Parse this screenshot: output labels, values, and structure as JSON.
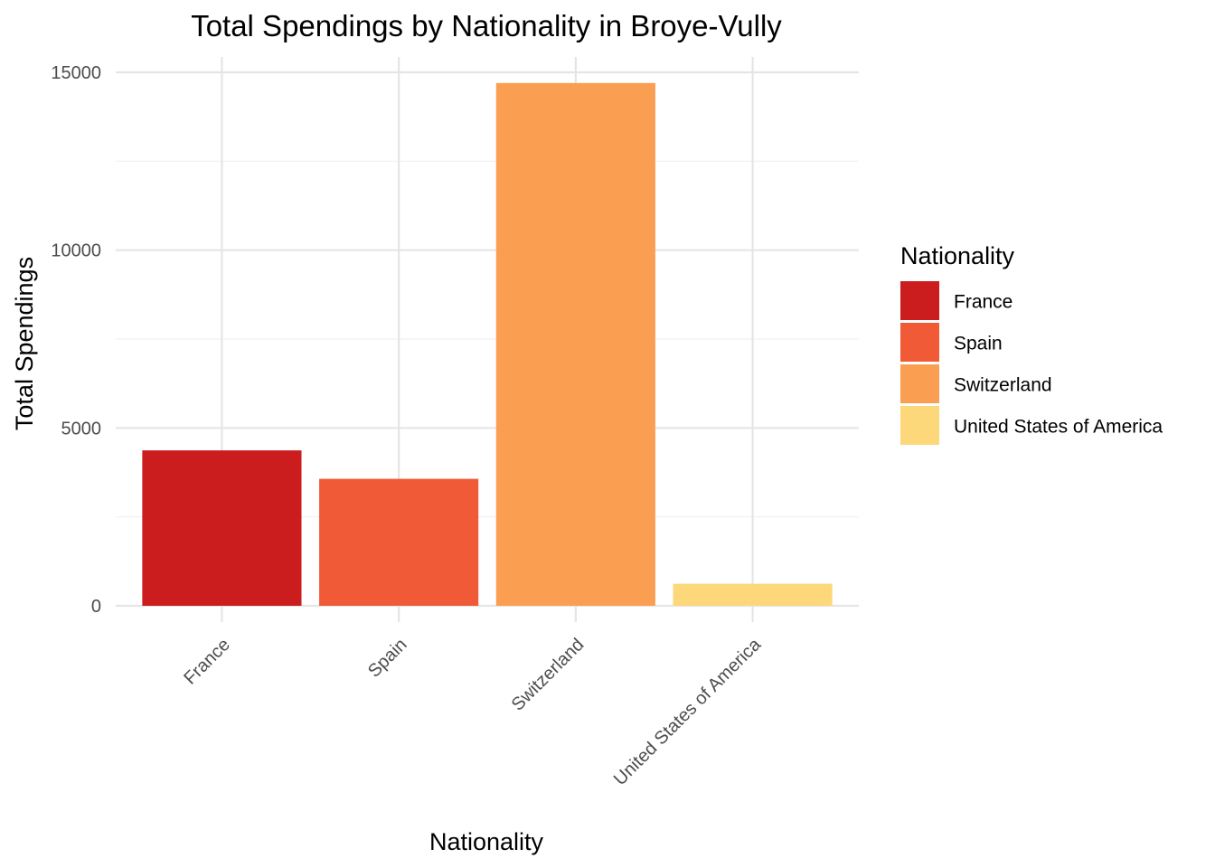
{
  "chart_data": {
    "type": "bar",
    "title": "Total Spendings by Nationality in Broye-Vully",
    "xlabel": "Nationality",
    "ylabel": "Total Spendings",
    "categories": [
      "France",
      "Spain",
      "Switzerland",
      "United States of America"
    ],
    "values": [
      4370,
      3570,
      14700,
      620
    ],
    "colors": [
      "#CB1C1E",
      "#F05A37",
      "#FA9F52",
      "#FDD87B"
    ],
    "ylim": [
      0,
      15000
    ],
    "yticks": [
      0,
      5000,
      10000,
      15000
    ],
    "yticks_minor": [
      2500,
      7500,
      12500
    ],
    "grid": true,
    "legend": {
      "title": "Nationality",
      "placement": "right",
      "entries": [
        "France",
        "Spain",
        "Switzerland",
        "United States of America"
      ]
    }
  }
}
